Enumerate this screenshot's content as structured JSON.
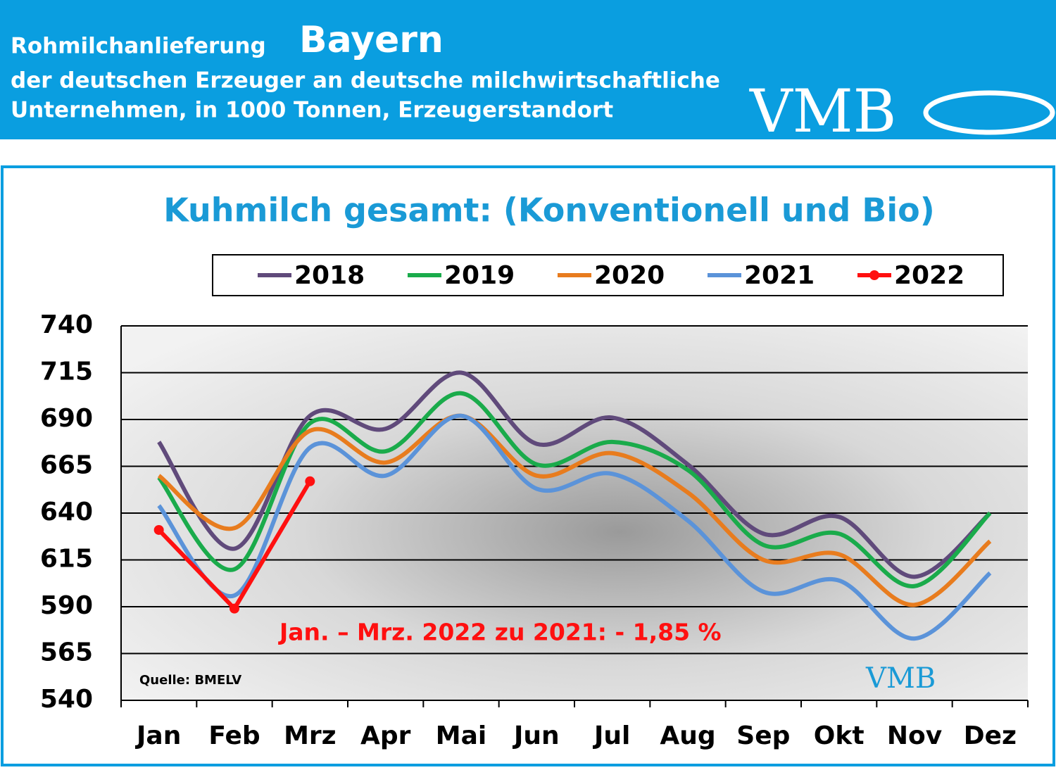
{
  "header": {
    "label": "Rohmilchanlieferung",
    "region": "Bayern",
    "line2": "der deutschen Erzeuger an deutsche milchwirtschaftliche",
    "line3": "Unternehmen, in 1000 Tonnen, Erzeugerstandort",
    "logo": "VMB"
  },
  "chart_data": {
    "type": "line",
    "title": "Kuhmilch gesamt: (Konventionell und Bio)",
    "categories": [
      "Jan",
      "Feb",
      "Mrz",
      "Apr",
      "Mai",
      "Jun",
      "Jul",
      "Aug",
      "Sep",
      "Okt",
      "Nov",
      "Dez"
    ],
    "series": [
      {
        "name": "2018",
        "color": "#604a7b",
        "values": [
          678,
          621,
          692,
          685,
          715,
          677,
          691,
          666,
          629,
          638,
          606,
          640
        ]
      },
      {
        "name": "2019",
        "color": "#1aab4b",
        "values": [
          659,
          610,
          688,
          673,
          704,
          666,
          678,
          663,
          623,
          629,
          601,
          640
        ]
      },
      {
        "name": "2020",
        "color": "#e87c1e",
        "values": [
          660,
          632,
          684,
          667,
          692,
          660,
          672,
          651,
          615,
          618,
          591,
          625
        ]
      },
      {
        "name": "2021",
        "color": "#5b93d9",
        "values": [
          644,
          596,
          675,
          660,
          692,
          653,
          661,
          636,
          598,
          604,
          573,
          608
        ]
      },
      {
        "name": "2022",
        "color": "#ff1010",
        "markers": true,
        "values": [
          631,
          589,
          657,
          null,
          null,
          null,
          null,
          null,
          null,
          null,
          null,
          null
        ]
      }
    ],
    "ylim": [
      540,
      740
    ],
    "yticks": [
      540,
      565,
      590,
      615,
      640,
      665,
      690,
      715,
      740
    ],
    "grid": true,
    "annotation": "Jan. – Mrz. 2022 zu 2021: - 1,85 %",
    "source": "Quelle: BMELV"
  }
}
